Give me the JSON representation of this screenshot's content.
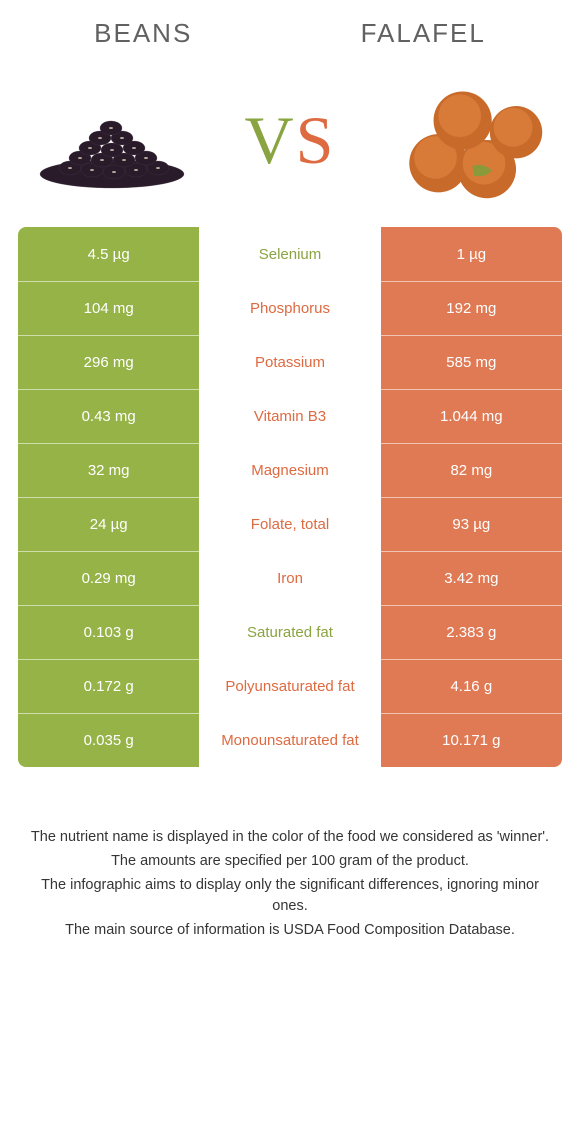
{
  "colors": {
    "left": "#96b347",
    "right": "#e07a55",
    "mid_left": "#89a440",
    "mid_right": "#de6a41",
    "title": "#616161",
    "footer": "#353535"
  },
  "left_title": "Beans",
  "right_title": "Falafel",
  "vs_v": "V",
  "vs_s": "S",
  "rows": [
    {
      "left": "4.5 µg",
      "label": "Selenium",
      "right": "1 µg",
      "winner": "left"
    },
    {
      "left": "104 mg",
      "label": "Phosphorus",
      "right": "192 mg",
      "winner": "right"
    },
    {
      "left": "296 mg",
      "label": "Potassium",
      "right": "585 mg",
      "winner": "right"
    },
    {
      "left": "0.43 mg",
      "label": "Vitamin B3",
      "right": "1.044 mg",
      "winner": "right"
    },
    {
      "left": "32 mg",
      "label": "Magnesium",
      "right": "82 mg",
      "winner": "right"
    },
    {
      "left": "24 µg",
      "label": "Folate, total",
      "right": "93 µg",
      "winner": "right"
    },
    {
      "left": "0.29 mg",
      "label": "Iron",
      "right": "3.42 mg",
      "winner": "right"
    },
    {
      "left": "0.103 g",
      "label": "Saturated fat",
      "right": "2.383 g",
      "winner": "left"
    },
    {
      "left": "0.172 g",
      "label": "Polyunsaturated fat",
      "right": "4.16 g",
      "winner": "right"
    },
    {
      "left": "0.035 g",
      "label": "Monounsaturated fat",
      "right": "10.171 g",
      "winner": "right"
    }
  ],
  "footer": {
    "l1": "The nutrient name is displayed in the color of the food we considered as 'winner'.",
    "l2": "The amounts are specified per 100 gram of the product.",
    "l3": "The infographic aims to display only the significant differences, ignoring minor ones.",
    "l4": "The main source of information is USDA Food Composition Database."
  }
}
